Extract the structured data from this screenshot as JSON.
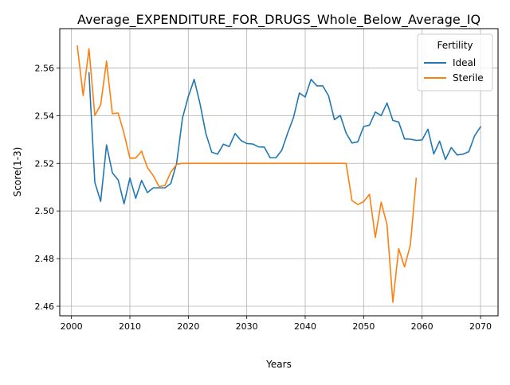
{
  "chart_data": {
    "type": "line",
    "title": "Average_EXPENDITURE_FOR_DRUGS_Whole_Below_Average_IQ",
    "xlabel": "Years",
    "ylabel": "Score(1-3)",
    "xlim": [
      1998,
      2073
    ],
    "ylim": [
      2.456,
      2.5765
    ],
    "xticks": [
      2000,
      2010,
      2020,
      2030,
      2040,
      2050,
      2060,
      2070
    ],
    "xtick_labels": [
      "2000",
      "2010",
      "2020",
      "2030",
      "2040",
      "2050",
      "2060",
      "2070"
    ],
    "yticks": [
      2.46,
      2.48,
      2.5,
      2.52,
      2.54,
      2.56
    ],
    "ytick_labels": [
      "2.46",
      "2.48",
      "2.50",
      "2.52",
      "2.54",
      "2.56"
    ],
    "grid": true,
    "legend": {
      "title": "Fertility",
      "placement": "top-right"
    },
    "series": [
      {
        "name": "Ideal",
        "color": "#1f77b4",
        "x": [
          2003,
          2004,
          2005,
          2006,
          2007,
          2008,
          2009,
          2010,
          2011,
          2012,
          2013,
          2014,
          2015,
          2016,
          2017,
          2018,
          2019,
          2020,
          2021,
          2022,
          2023,
          2024,
          2025,
          2026,
          2027,
          2028,
          2029,
          2030,
          2031,
          2032,
          2033,
          2034,
          2035,
          2036,
          2037,
          2038,
          2039,
          2040,
          2041,
          2042,
          2043,
          2044,
          2045,
          2046,
          2047,
          2048,
          2049,
          2050,
          2051,
          2052,
          2053,
          2054,
          2055,
          2056,
          2057,
          2058,
          2059,
          2060,
          2061,
          2062,
          2063,
          2064,
          2065,
          2066,
          2067,
          2068,
          2069,
          2070
        ],
        "y": [
          2.558,
          2.512,
          2.504,
          2.5277,
          2.516,
          2.513,
          2.503,
          2.5138,
          2.5053,
          2.5128,
          2.5077,
          2.5097,
          2.5097,
          2.5097,
          2.5115,
          2.52,
          2.539,
          2.548,
          2.5552,
          2.545,
          2.5325,
          2.5247,
          2.5238,
          2.528,
          2.527,
          2.5325,
          2.5296,
          2.5283,
          2.5281,
          2.5269,
          2.5268,
          2.5223,
          2.5223,
          2.5255,
          2.5327,
          2.5392,
          2.5495,
          2.5478,
          2.5552,
          2.5525,
          2.5525,
          2.5483,
          2.5383,
          2.5401,
          2.5327,
          2.5285,
          2.529,
          2.5354,
          2.536,
          2.5415,
          2.54,
          2.5453,
          2.538,
          2.5373,
          2.5302,
          2.5301,
          2.5296,
          2.5298,
          2.5343,
          2.5239,
          2.5293,
          2.5216,
          2.5266,
          2.5235,
          2.5238,
          2.5249,
          2.5316,
          2.5353
        ]
      },
      {
        "name": "Sterile",
        "color": "#ff7f0e",
        "x": [
          2001,
          2002,
          2003,
          2004,
          2005,
          2006,
          2007,
          2008,
          2009,
          2010,
          2011,
          2012,
          2013,
          2014,
          2015,
          2016,
          2017,
          2018,
          2019,
          2020,
          2021,
          2022,
          2023,
          2024,
          2025,
          2026,
          2027,
          2028,
          2029,
          2030,
          2031,
          2032,
          2033,
          2034,
          2035,
          2036,
          2037,
          2038,
          2039,
          2040,
          2041,
          2042,
          2043,
          2044,
          2045,
          2046,
          2047,
          2048,
          2049,
          2050,
          2051,
          2052,
          2053,
          2054,
          2055,
          2056,
          2057,
          2058,
          2059
        ],
        "y": [
          2.5692,
          2.5484,
          2.5681,
          2.5401,
          2.5445,
          2.5629,
          2.5408,
          2.5411,
          2.5325,
          2.5221,
          2.5222,
          2.5251,
          2.5182,
          2.5148,
          2.5102,
          2.5107,
          2.5163,
          2.5195,
          2.52,
          2.52,
          2.52,
          2.52,
          2.52,
          2.52,
          2.52,
          2.52,
          2.52,
          2.52,
          2.52,
          2.52,
          2.52,
          2.52,
          2.52,
          2.52,
          2.52,
          2.52,
          2.52,
          2.52,
          2.52,
          2.52,
          2.52,
          2.52,
          2.52,
          2.52,
          2.52,
          2.52,
          2.52,
          2.5044,
          2.5027,
          2.5039,
          2.507,
          2.4889,
          2.5037,
          2.4942,
          2.4617,
          2.4842,
          2.4765,
          2.4858,
          2.5137
        ]
      }
    ]
  }
}
